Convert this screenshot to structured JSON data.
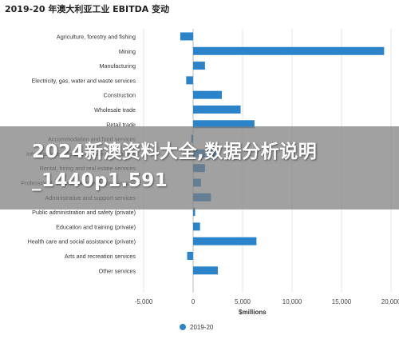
{
  "title": "2019-20 年澳大利亚工业 EBITDA 变动",
  "overlay_text": "2024新澳资料大全,数据分析说明_1440p1.591",
  "chart_data": {
    "type": "bar",
    "orientation": "horizontal",
    "title": "2019-20 年澳大利亚工业 EBITDA 变动",
    "categories": [
      "Agriculture, forestry and fishing",
      "Mining",
      "Manufacturing",
      "Electricity, gas, water and waste services",
      "Construction",
      "Wholesale trade",
      "Retail trade",
      "Accommodation and food services",
      "Information media and telecommunications",
      "Rental, hiring and real estate services",
      "Professional, scientific and technical services",
      "Administrative and support services",
      "Public administration and safety (private)",
      "Education and training (private)",
      "Health care and social assistance (private)",
      "Arts and recreation services",
      "Other services"
    ],
    "series": [
      {
        "name": "2019-20",
        "values": [
          -1300,
          19300,
          1200,
          -700,
          2900,
          4800,
          6200,
          -200,
          2600,
          1200,
          800,
          1800,
          200,
          700,
          6400,
          -600,
          2500
        ]
      }
    ],
    "xlabel": "$millions",
    "xlim": [
      -5000,
      20000
    ],
    "xticks": [
      -5000,
      0,
      5000,
      10000,
      15000,
      20000
    ],
    "xtick_labels": [
      "-5,000",
      "0",
      "5,000",
      "10,000",
      "15,000",
      "20,000"
    ],
    "legend_position": "bottom",
    "grid": "vertical",
    "colors": {
      "bar": "#2b83c9",
      "grid": "#e6e6e6"
    }
  }
}
